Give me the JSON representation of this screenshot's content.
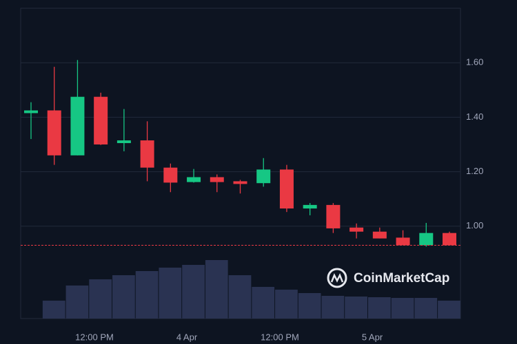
{
  "chart_data": {
    "type": "candlestick",
    "x_labels": [
      "12:00 PM",
      "4 Apr",
      "12:00 PM",
      "5 Apr"
    ],
    "open": [
      1.415,
      1.425,
      1.26,
      1.475,
      1.305,
      1.315,
      1.215,
      1.162,
      1.18,
      1.165,
      1.158,
      1.208,
      1.065,
      1.078,
      0.995,
      0.98,
      0.958,
      0.93,
      0.975
    ],
    "high": [
      1.455,
      1.585,
      1.61,
      1.49,
      1.43,
      1.385,
      1.23,
      1.21,
      1.19,
      1.17,
      1.25,
      1.225,
      1.085,
      1.085,
      1.01,
      0.995,
      0.985,
      1.012,
      0.98
    ],
    "low": [
      1.32,
      1.225,
      1.26,
      1.298,
      1.275,
      1.165,
      1.125,
      1.16,
      1.125,
      1.12,
      1.145,
      1.052,
      1.04,
      0.975,
      0.955,
      0.955,
      0.93,
      0.925,
      0.93
    ],
    "close": [
      1.425,
      1.26,
      1.475,
      1.3,
      1.315,
      1.215,
      1.16,
      1.18,
      1.162,
      1.155,
      1.208,
      1.065,
      1.078,
      0.992,
      0.98,
      0.955,
      0.93,
      0.975,
      0.93
    ],
    "volume": [
      null,
      26,
      48,
      57,
      63,
      69,
      74,
      78,
      85,
      63,
      46,
      42,
      37,
      33,
      32,
      31,
      30,
      30,
      26
    ],
    "up_color": "#16c784",
    "down_color": "#ea3943",
    "volume_color": "#2a3352",
    "current_price": 0.93,
    "ylim": [
      0.661,
      1.8
    ],
    "yticks": [
      {
        "value": 1.0,
        "label": "1.00"
      },
      {
        "value": 1.2,
        "label": "1.20"
      },
      {
        "value": 1.4,
        "label": "1.40"
      },
      {
        "value": 1.6,
        "label": "1.60"
      }
    ],
    "volume_lim": [
      0,
      100
    ],
    "grid": true,
    "watermark": "CoinMarketCap"
  }
}
